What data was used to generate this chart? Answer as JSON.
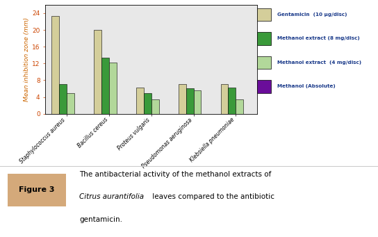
{
  "categories": [
    "Staphylococcus aureus",
    "Bacillus cereus",
    "Proteus vulgaris",
    "Pseudomonas aeruginosa",
    "Klebsiella pneumoniae"
  ],
  "series_names": [
    "Gentamicin  (10 μg/disc)",
    "Methanol extract (8 mg/disc)",
    "Methanol extract  (4 mg/disc)",
    "Methanol (Absolute)"
  ],
  "series_values": [
    [
      23.3,
      20.0,
      6.2,
      7.0,
      7.0
    ],
    [
      7.0,
      13.3,
      5.0,
      6.0,
      6.3
    ],
    [
      5.0,
      12.2,
      3.5,
      5.5,
      3.5
    ],
    [
      0.0,
      0.0,
      0.0,
      0.0,
      0.0
    ]
  ],
  "colors": [
    "#d4ce9a",
    "#3a9a3a",
    "#b2d89a",
    "#6a0d9a"
  ],
  "ylabel": "Mean inhibition zone (mm)",
  "ylim": [
    0,
    26
  ],
  "yticks": [
    0,
    4,
    8,
    12,
    16,
    20,
    24
  ],
  "bar_width": 0.18,
  "plot_bg": "#e8e8e8",
  "fig_bg": "#ffffff",
  "caption_bg": "#d4a97a",
  "caption_label": "Figure 3",
  "caption_text1": "The antibacterial activity of the methanol extracts of",
  "caption_text2_italic": "Citrus aurantifolia",
  "caption_text2_rest": " leaves compared to the antibiotic",
  "caption_text3": "gentamicin.",
  "legend_text_color": "#1a3a8a",
  "axis_text_color": "#cc6600",
  "tick_label_color": "#cc4400"
}
